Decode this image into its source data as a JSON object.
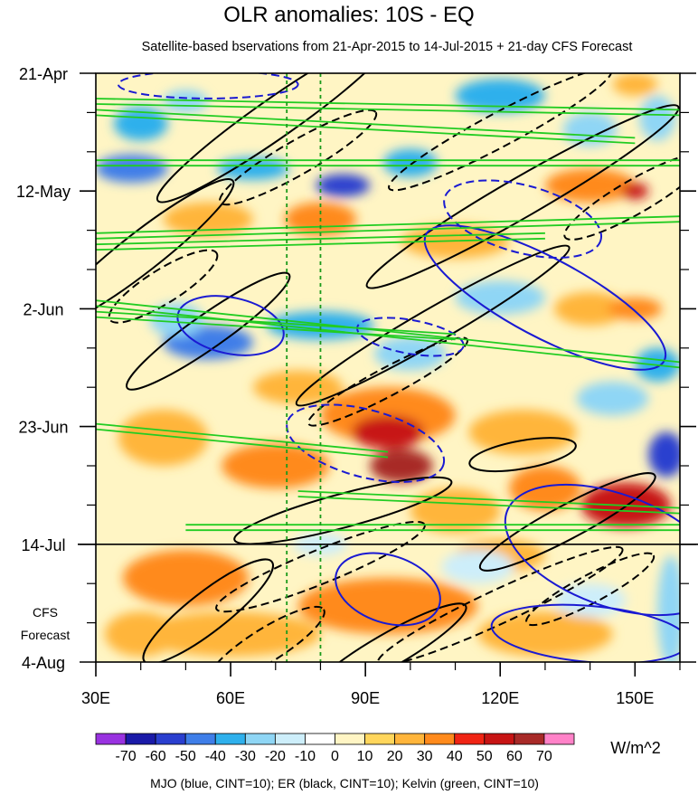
{
  "chart_data": {
    "type": "heatmap",
    "title": "OLR anomalies: 10S - EQ",
    "subtitle": "Satellite-based bservations from 21-Apr-2015 to 14-Jul-2015 + 21-day CFS Forecast",
    "xlabel": "",
    "ylabel": "",
    "x_range": [
      30,
      160
    ],
    "x_ticks": [
      {
        "value": 30,
        "label": "30E"
      },
      {
        "value": 60,
        "label": "60E"
      },
      {
        "value": 90,
        "label": "90E"
      },
      {
        "value": 120,
        "label": "120E"
      },
      {
        "value": 150,
        "label": "150E"
      }
    ],
    "y_range_days": [
      0,
      105
    ],
    "y_ticks": [
      {
        "day": 0,
        "label": "21-Apr"
      },
      {
        "day": 21,
        "label": "12-May"
      },
      {
        "day": 42,
        "label": "2-Jun"
      },
      {
        "day": 63,
        "label": "23-Jun"
      },
      {
        "day": 84,
        "label": "14-Jul"
      },
      {
        "day": 105,
        "label": "4-Aug"
      }
    ],
    "observation_end_day": 84,
    "forecast_label_line1": "CFS",
    "forecast_label_line2": "Forecast",
    "reference_lon_lines": [
      72.5,
      80
    ],
    "colorbar": {
      "unit": "W/m^2",
      "levels": [
        -70,
        -60,
        -50,
        -40,
        -30,
        -20,
        -10,
        0,
        10,
        20,
        30,
        40,
        50,
        60,
        70
      ],
      "level_labels": [
        "-70",
        "-60",
        "-50",
        "-40",
        "-30",
        "-20",
        "-10",
        "0",
        "10",
        "20",
        "30",
        "40",
        "50",
        "60",
        "70"
      ],
      "colors": [
        "#9932e0",
        "#1a1aa8",
        "#2a3fcf",
        "#3f7ee8",
        "#2fb0ec",
        "#8fd6f5",
        "#cdeefa",
        "#ffffff",
        "#fff5c4",
        "#ffd65c",
        "#ffb53b",
        "#ff8a1c",
        "#f02414",
        "#c71414",
        "#a82a28",
        "#ff82c8"
      ]
    },
    "footer": "MJO (blue, CINT=10); ER (black, CINT=10); Kelvin (green, CINT=10)",
    "contours": {
      "mjo": {
        "color": "#1a1ad2",
        "cint": 10
      },
      "er": {
        "color": "#000000",
        "cint": 10
      },
      "kelvin": {
        "color": "#22cc22",
        "cint": 10
      }
    },
    "anomaly_blobs": [
      {
        "lon": 40,
        "day": 9,
        "rlon": 6,
        "rday": 3,
        "value": -40
      },
      {
        "lon": 38,
        "day": 17,
        "rlon": 8,
        "rday": 2.5,
        "value": -50
      },
      {
        "lon": 50,
        "day": 5,
        "rlon": 5,
        "rday": 2,
        "value": -30
      },
      {
        "lon": 65,
        "day": 17,
        "rlon": 8,
        "rday": 2,
        "value": -40
      },
      {
        "lon": 85,
        "day": 20,
        "rlon": 6,
        "rday": 2,
        "value": -60
      },
      {
        "lon": 100,
        "day": 16,
        "rlon": 6,
        "rday": 2.5,
        "value": -40
      },
      {
        "lon": 120,
        "day": 4,
        "rlon": 10,
        "rday": 3,
        "value": -40
      },
      {
        "lon": 140,
        "day": 10,
        "rlon": 6,
        "rday": 3,
        "value": -30
      },
      {
        "lon": 155,
        "day": 8,
        "rlon": 4,
        "rday": 4,
        "value": -30
      },
      {
        "lon": 150,
        "day": 2,
        "rlon": 5,
        "rday": 2,
        "value": 20
      },
      {
        "lon": 140,
        "day": 20,
        "rlon": 10,
        "rday": 3,
        "value": 30
      },
      {
        "lon": 150,
        "day": 21,
        "rlon": 3,
        "rday": 1.5,
        "value": 50
      },
      {
        "lon": 80,
        "day": 26,
        "rlon": 8,
        "rday": 3,
        "value": 30
      },
      {
        "lon": 55,
        "day": 26,
        "rlon": 10,
        "rday": 3,
        "value": 20
      },
      {
        "lon": 110,
        "day": 30,
        "rlon": 12,
        "rday": 3,
        "value": 20
      },
      {
        "lon": 120,
        "day": 40,
        "rlon": 10,
        "rday": 3,
        "value": -30
      },
      {
        "lon": 55,
        "day": 48,
        "rlon": 10,
        "rday": 3,
        "value": -50
      },
      {
        "lon": 48,
        "day": 44,
        "rlon": 6,
        "rday": 3,
        "value": -30
      },
      {
        "lon": 80,
        "day": 45,
        "rlon": 12,
        "rday": 2.5,
        "value": -40
      },
      {
        "lon": 100,
        "day": 50,
        "rlon": 8,
        "rday": 3,
        "value": -30
      },
      {
        "lon": 140,
        "day": 42,
        "rlon": 8,
        "rday": 3,
        "value": 20
      },
      {
        "lon": 150,
        "day": 42,
        "rlon": 6,
        "rday": 2,
        "value": 30
      },
      {
        "lon": 155,
        "day": 52,
        "rlon": 5,
        "rday": 3,
        "value": -40
      },
      {
        "lon": 75,
        "day": 56,
        "rlon": 10,
        "rday": 3,
        "value": 20
      },
      {
        "lon": 95,
        "day": 61,
        "rlon": 15,
        "rday": 5,
        "value": 30
      },
      {
        "lon": 95,
        "day": 64,
        "rlon": 8,
        "rday": 3,
        "value": 50
      },
      {
        "lon": 98,
        "day": 70,
        "rlon": 7,
        "rday": 3,
        "value": 60
      },
      {
        "lon": 70,
        "day": 70,
        "rlon": 12,
        "rday": 4,
        "value": 30
      },
      {
        "lon": 45,
        "day": 65,
        "rlon": 10,
        "rday": 5,
        "value": 20
      },
      {
        "lon": 125,
        "day": 64,
        "rlon": 12,
        "rday": 4,
        "value": 20
      },
      {
        "lon": 145,
        "day": 58,
        "rlon": 8,
        "rday": 3,
        "value": -30
      },
      {
        "lon": 157,
        "day": 68,
        "rlon": 4,
        "rday": 4,
        "value": -60
      },
      {
        "lon": 148,
        "day": 77,
        "rlon": 10,
        "rday": 4,
        "value": 50
      },
      {
        "lon": 130,
        "day": 74,
        "rlon": 8,
        "rday": 4,
        "value": 30
      },
      {
        "lon": 110,
        "day": 78,
        "rlon": 10,
        "rday": 4,
        "value": 20
      },
      {
        "lon": 55,
        "day": 89,
        "rlon": 6,
        "rday": 3,
        "value": 60
      },
      {
        "lon": 50,
        "day": 90,
        "rlon": 14,
        "rday": 5,
        "value": 30
      },
      {
        "lon": 90,
        "day": 96,
        "rlon": 10,
        "rday": 3,
        "value": 50
      },
      {
        "lon": 95,
        "day": 95,
        "rlon": 20,
        "rday": 5,
        "value": 30
      },
      {
        "lon": 120,
        "day": 86,
        "rlon": 10,
        "rday": 3,
        "value": 20
      },
      {
        "lon": 60,
        "day": 100,
        "rlon": 20,
        "rday": 4,
        "value": 20
      },
      {
        "lon": 130,
        "day": 100,
        "rlon": 15,
        "rday": 4,
        "value": 20
      },
      {
        "lon": 115,
        "day": 88,
        "rlon": 8,
        "rday": 3,
        "value": -20
      },
      {
        "lon": 80,
        "day": 84,
        "rlon": 6,
        "rday": 2,
        "value": -20
      },
      {
        "lon": 140,
        "day": 94,
        "rlon": 8,
        "rday": 3,
        "value": -20
      },
      {
        "lon": 158,
        "day": 96,
        "rlon": 3,
        "rday": 10,
        "value": -30
      },
      {
        "lon": 40,
        "day": 100,
        "rlon": 8,
        "rday": 4,
        "value": 20
      }
    ],
    "er_contours": [
      {
        "lon": 40,
        "day": 32,
        "rlon": 26,
        "rday": 3.5,
        "angle": -38,
        "dashed": false
      },
      {
        "lon": 70,
        "day": 8,
        "rlon": 32,
        "rday": 3.5,
        "angle": -35,
        "dashed": false
      },
      {
        "lon": 125,
        "day": 22,
        "rlon": 40,
        "rday": 3.5,
        "angle": -30,
        "dashed": false
      },
      {
        "lon": 55,
        "day": 46,
        "rlon": 22,
        "rday": 3,
        "angle": -35,
        "dashed": false
      },
      {
        "lon": 105,
        "day": 45,
        "rlon": 35,
        "rday": 3,
        "angle": -30,
        "dashed": false
      },
      {
        "lon": 125,
        "day": 68,
        "rlon": 12,
        "rday": 2.5,
        "angle": -10,
        "dashed": false
      },
      {
        "lon": 85,
        "day": 78,
        "rlon": 25,
        "rday": 3,
        "angle": -15,
        "dashed": false
      },
      {
        "lon": 135,
        "day": 80,
        "rlon": 22,
        "rday": 3,
        "angle": -28,
        "dashed": false
      },
      {
        "lon": 55,
        "day": 96,
        "rlon": 18,
        "rday": 3.5,
        "angle": -38,
        "dashed": false
      },
      {
        "lon": 95,
        "day": 103,
        "rlon": 20,
        "rday": 3,
        "angle": -30,
        "dashed": false
      },
      {
        "lon": 75,
        "day": 15,
        "rlon": 20,
        "rday": 3,
        "angle": -30,
        "dashed": true
      },
      {
        "lon": 120,
        "day": 10,
        "rlon": 28,
        "rday": 3,
        "angle": -28,
        "dashed": true
      },
      {
        "lon": 45,
        "day": 38,
        "rlon": 14,
        "rday": 3,
        "angle": -32,
        "dashed": true
      },
      {
        "lon": 150,
        "day": 22,
        "rlon": 18,
        "rday": 3,
        "angle": -30,
        "dashed": true
      },
      {
        "lon": 95,
        "day": 55,
        "rlon": 20,
        "rday": 2.5,
        "angle": -28,
        "dashed": true
      },
      {
        "lon": 80,
        "day": 88,
        "rlon": 25,
        "rday": 3,
        "angle": -22,
        "dashed": true
      },
      {
        "lon": 120,
        "day": 95,
        "rlon": 30,
        "rday": 3,
        "angle": -25,
        "dashed": true
      },
      {
        "lon": 68,
        "day": 102,
        "rlon": 15,
        "rday": 3,
        "angle": -32,
        "dashed": true
      },
      {
        "lon": 140,
        "day": 92,
        "rlon": 16,
        "rday": 2.5,
        "angle": -28,
        "dashed": true
      }
    ],
    "mjo_contours": [
      {
        "lon": 60,
        "day": 45,
        "rlon": 12,
        "rday": 5,
        "angle": 12,
        "dashed": false
      },
      {
        "lon": 130,
        "day": 40,
        "rlon": 30,
        "rday": 7,
        "angle": 28,
        "dashed": false
      },
      {
        "lon": 145,
        "day": 85,
        "rlon": 25,
        "rday": 10,
        "angle": 20,
        "dashed": false
      },
      {
        "lon": 95,
        "day": 92,
        "rlon": 12,
        "rday": 6,
        "angle": 18,
        "dashed": false
      },
      {
        "lon": 140,
        "day": 100,
        "rlon": 22,
        "rday": 5,
        "angle": 5,
        "dashed": false
      },
      {
        "lon": 55,
        "day": 2,
        "rlon": 20,
        "rday": 2.5,
        "angle": 0,
        "dashed": true
      },
      {
        "lon": 125,
        "day": 26,
        "rlon": 18,
        "rday": 6,
        "angle": 15,
        "dashed": true
      },
      {
        "lon": 100,
        "day": 47,
        "rlon": 12,
        "rday": 3,
        "angle": 10,
        "dashed": true
      },
      {
        "lon": 90,
        "day": 66,
        "rlon": 18,
        "rday": 6,
        "angle": 15,
        "dashed": true
      }
    ],
    "kelvin_waves": [
      {
        "lon0": 30,
        "day0": 5,
        "lon1": 160,
        "day1": 7
      },
      {
        "lon0": 30,
        "day0": 16,
        "lon1": 160,
        "day1": 16
      },
      {
        "lon0": 30,
        "day0": 7,
        "lon1": 150,
        "day1": 12
      },
      {
        "lon0": 30,
        "day0": 29,
        "lon1": 160,
        "day1": 26
      },
      {
        "lon0": 30,
        "day0": 31,
        "lon1": 130,
        "day1": 29
      },
      {
        "lon0": 30,
        "day0": 41,
        "lon1": 160,
        "day1": 52
      },
      {
        "lon0": 30,
        "day0": 43,
        "lon1": 110,
        "day1": 47
      },
      {
        "lon0": 30,
        "day0": 63,
        "lon1": 95,
        "day1": 68
      },
      {
        "lon0": 75,
        "day0": 75,
        "lon1": 160,
        "day1": 78
      },
      {
        "lon0": 50,
        "day0": 81,
        "lon1": 160,
        "day1": 81
      }
    ]
  }
}
